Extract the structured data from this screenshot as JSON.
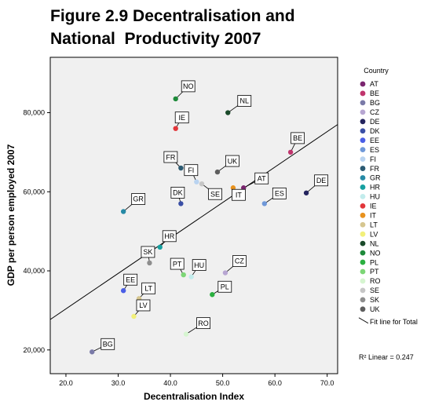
{
  "title_lines": [
    "Figure 2.9 Decentralisation and",
    "National  Productivity 2007"
  ],
  "chart_data": {
    "type": "scatter",
    "xlabel": "Decentralisation Index",
    "ylabel": "GDP per person employed 2007",
    "xlim": [
      17,
      72
    ],
    "ylim": [
      14000,
      94000
    ],
    "x_ticks": [
      20,
      30,
      40,
      50,
      60,
      70
    ],
    "x_tick_labels": [
      "20.0",
      "30.0",
      "40.0",
      "50.0",
      "60.0",
      "70.0"
    ],
    "y_ticks": [
      20000,
      40000,
      60000,
      80000
    ],
    "y_tick_labels": [
      "20,000",
      "40,000",
      "60,000",
      "80,000"
    ],
    "grid": false,
    "legend_title": "Country",
    "legend_position": "right",
    "points": [
      {
        "label": "AT",
        "x": 54,
        "y": 61000,
        "color": "#7b2670"
      },
      {
        "label": "BE",
        "x": 63,
        "y": 70000,
        "color": "#c0356d"
      },
      {
        "label": "BG",
        "x": 25,
        "y": 19500,
        "color": "#7a7aa8"
      },
      {
        "label": "CZ",
        "x": 50.5,
        "y": 39500,
        "color": "#b7a6d2"
      },
      {
        "label": "DE",
        "x": 66,
        "y": 59700,
        "color": "#24245e"
      },
      {
        "label": "DK",
        "x": 42,
        "y": 57000,
        "color": "#3a4fa6"
      },
      {
        "label": "EE",
        "x": 31,
        "y": 35000,
        "color": "#4a5ee6"
      },
      {
        "label": "ES",
        "x": 58,
        "y": 57000,
        "color": "#6f98d8"
      },
      {
        "label": "FI",
        "x": 45,
        "y": 62500,
        "color": "#b9d3f0"
      },
      {
        "label": "FR",
        "x": 42,
        "y": 66000,
        "color": "#2b5a72"
      },
      {
        "label": "GR",
        "x": 31,
        "y": 55000,
        "color": "#268aa6"
      },
      {
        "label": "HR",
        "x": 38,
        "y": 46000,
        "color": "#16a0a0"
      },
      {
        "label": "HU",
        "x": 44,
        "y": 38500,
        "color": "#c2ecec"
      },
      {
        "label": "IE",
        "x": 41,
        "y": 76000,
        "color": "#e2363a"
      },
      {
        "label": "IT",
        "x": 52,
        "y": 61000,
        "color": "#e8921e"
      },
      {
        "label": "LT",
        "x": 34,
        "y": 33000,
        "color": "#d6c690"
      },
      {
        "label": "LV",
        "x": 33,
        "y": 28500,
        "color": "#f2f07a"
      },
      {
        "label": "NL",
        "x": 51,
        "y": 80000,
        "color": "#1a4a2a"
      },
      {
        "label": "NO",
        "x": 41,
        "y": 83500,
        "color": "#1e8a3a"
      },
      {
        "label": "PL",
        "x": 48,
        "y": 34000,
        "color": "#2bb040"
      },
      {
        "label": "PT",
        "x": 42.5,
        "y": 39000,
        "color": "#7dd676"
      },
      {
        "label": "RO",
        "x": 43,
        "y": 24000,
        "color": "#d6f5d0"
      },
      {
        "label": "SE",
        "x": 46,
        "y": 62000,
        "color": "#c6c6c6"
      },
      {
        "label": "SK",
        "x": 36,
        "y": 42000,
        "color": "#8e8e8e"
      },
      {
        "label": "UK",
        "x": 49,
        "y": 65000,
        "color": "#5e5e5e"
      }
    ],
    "fit_line": {
      "name": "Fit line for Total",
      "x": [
        17,
        72
      ],
      "y": [
        27700,
        77000
      ]
    },
    "r_squared_label": "R² Linear = 0.247"
  }
}
